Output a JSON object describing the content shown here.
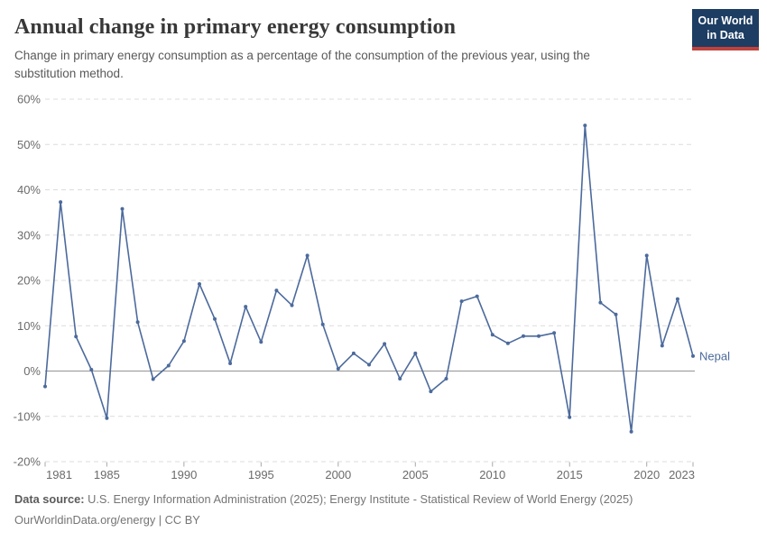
{
  "header": {
    "title": "Annual change in primary energy consumption",
    "subtitle": "Change in primary energy consumption as a percentage of the consumption of the previous year, using the substitution method.",
    "logo": {
      "line1": "Our World",
      "line2": "in Data"
    }
  },
  "chart_data": {
    "type": "line",
    "title": "Annual change in primary energy consumption",
    "subtitle": "Change in primary energy consumption as a percentage of the consumption of the previous year, using the substitution method.",
    "xlabel": "",
    "ylabel": "",
    "xlim": [
      1981,
      2023
    ],
    "ylim": [
      -20,
      60
    ],
    "x_ticks": [
      1981,
      1985,
      1990,
      1995,
      2000,
      2005,
      2010,
      2015,
      2020,
      2023
    ],
    "y_ticks": [
      60,
      50,
      40,
      30,
      20,
      10,
      0,
      -10,
      -20
    ],
    "y_suffix": "%",
    "grid": "horizontal-dashed",
    "zero_line": true,
    "legend_position": "end-of-line-label",
    "series": [
      {
        "name": "Nepal",
        "color": "#4c6a9c",
        "x": [
          1981,
          1982,
          1983,
          1984,
          1985,
          1986,
          1987,
          1988,
          1989,
          1990,
          1991,
          1992,
          1993,
          1994,
          1995,
          1996,
          1997,
          1998,
          1999,
          2000,
          2001,
          2002,
          2003,
          2004,
          2005,
          2006,
          2007,
          2008,
          2009,
          2010,
          2011,
          2012,
          2013,
          2014,
          2015,
          2016,
          2017,
          2018,
          2019,
          2020,
          2021,
          2022,
          2023
        ],
        "values": [
          -3.4,
          37.3,
          7.6,
          0.3,
          -10.4,
          35.8,
          10.8,
          -1.8,
          1.2,
          6.6,
          19.2,
          11.5,
          1.7,
          14.2,
          6.4,
          17.8,
          14.5,
          25.5,
          10.3,
          0.5,
          3.9,
          1.4,
          6.0,
          -1.7,
          3.9,
          -4.5,
          -1.7,
          15.4,
          16.5,
          8.0,
          6.1,
          7.7,
          7.7,
          8.4,
          -10.2,
          54.2,
          15.1,
          12.5,
          -13.4,
          25.5,
          5.6,
          15.9,
          3.3
        ]
      }
    ]
  },
  "footer": {
    "datasource_label": "Data source:",
    "datasource_text": "U.S. Energy Information Administration (2025); Energy Institute - Statistical Review of World Energy (2025)",
    "license_line": "OurWorldinData.org/energy | CC BY"
  },
  "colors": {
    "accent_blue": "#4c6a9c",
    "logo_navy": "#1d3d63",
    "logo_red": "#c0423c",
    "grid": "#dcdcdc",
    "zero_line": "#949494",
    "axis_text": "#6b6b6b",
    "tick_mark": "#a8a8a8"
  }
}
